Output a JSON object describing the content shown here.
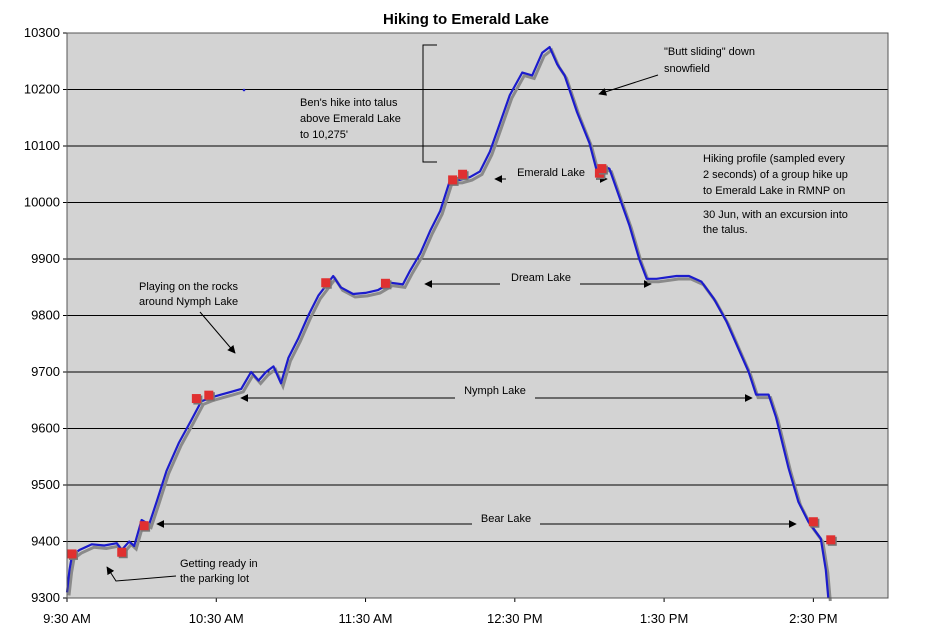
{
  "chart_data": {
    "type": "line",
    "title": "Hiking to Emerald Lake",
    "xlabel": "",
    "ylabel": "",
    "ylim": [
      9300,
      10300
    ],
    "xlim": [
      "9:30 AM",
      "3:00 PM"
    ],
    "yticks": [
      9300,
      9400,
      9500,
      9600,
      9700,
      9800,
      9900,
      10000,
      10100,
      10200,
      10300
    ],
    "xticks": [
      "9:30 AM",
      "10:30 AM",
      "11:30 AM",
      "12:30 PM",
      "1:30 PM",
      "2:30 PM"
    ],
    "grid": "horizontal",
    "colors": {
      "plot_bg": "#d3d3d3",
      "line": "#1c1ccc",
      "marker": "#e03030",
      "grid": "#000000"
    },
    "series": [
      {
        "points": [
          [
            "9:30 AM",
            9310
          ],
          [
            "9:31 AM",
            9350
          ],
          [
            "9:32 AM",
            9375
          ],
          [
            "9:35 AM",
            9385
          ],
          [
            "9:40 AM",
            9395
          ],
          [
            "9:45 AM",
            9393
          ],
          [
            "9:50 AM",
            9397
          ],
          [
            "9:52 AM",
            9385
          ],
          [
            "9:55 AM",
            9400
          ],
          [
            "9:57 AM",
            9392
          ],
          [
            "10:00 AM",
            9438
          ],
          [
            "10:03 AM",
            9430
          ],
          [
            "10:06 AM",
            9470
          ],
          [
            "10:10 AM",
            9525
          ],
          [
            "10:15 AM",
            9575
          ],
          [
            "10:20 AM",
            9615
          ],
          [
            "10:24 AM",
            9648
          ],
          [
            "10:28 AM",
            9655
          ],
          [
            "10:32 AM",
            9660
          ],
          [
            "10:36 AM",
            9665
          ],
          [
            "10:40 AM",
            9670
          ],
          [
            "10:44 AM",
            9700
          ],
          [
            "10:47 AM",
            9685
          ],
          [
            "10:50 AM",
            9700
          ],
          [
            "10:53 AM",
            9710
          ],
          [
            "10:56 AM",
            9680
          ],
          [
            "10:59 AM",
            9725
          ],
          [
            "11:03 AM",
            9760
          ],
          [
            "11:07 AM",
            9800
          ],
          [
            "11:11 AM",
            9835
          ],
          [
            "11:15 AM",
            9858
          ],
          [
            "11:17 AM",
            9870
          ],
          [
            "11:20 AM",
            9850
          ],
          [
            "11:25 AM",
            9838
          ],
          [
            "11:30 AM",
            9840
          ],
          [
            "11:35 AM",
            9845
          ],
          [
            "11:40 AM",
            9858
          ],
          [
            "11:45 AM",
            9855
          ],
          [
            "11:48 AM",
            9880
          ],
          [
            "11:52 AM",
            9910
          ],
          [
            "11:56 AM",
            9950
          ],
          [
            "12:00 PM",
            9985
          ],
          [
            "12:04 PM",
            10040
          ],
          [
            "12:08 PM",
            10040
          ],
          [
            "12:12 PM",
            10045
          ],
          [
            "12:16 PM",
            10055
          ],
          [
            "12:20 PM",
            10090
          ],
          [
            "12:24 PM",
            10140
          ],
          [
            "12:28 PM",
            10190
          ],
          [
            "12:33 PM",
            10230
          ],
          [
            "12:37 PM",
            10225
          ],
          [
            "12:41 PM",
            10265
          ],
          [
            "12:44 PM",
            10275
          ],
          [
            "12:47 PM",
            10245
          ],
          [
            "12:50 PM",
            10225
          ],
          [
            "12:55 PM",
            10160
          ],
          [
            "1:00 PM",
            10105
          ],
          [
            "1:03 PM",
            10055
          ],
          [
            "1:05 PM",
            10065
          ],
          [
            "1:08 PM",
            10060
          ],
          [
            "1:12 PM",
            10010
          ],
          [
            "1:16 PM",
            9960
          ],
          [
            "1:20 PM",
            9900
          ],
          [
            "1:23 PM",
            9865
          ],
          [
            "1:27 PM",
            9865
          ],
          [
            "1:35 PM",
            9870
          ],
          [
            "1:40 PM",
            9870
          ],
          [
            "1:45 PM",
            9860
          ],
          [
            "1:50 PM",
            9830
          ],
          [
            "1:55 PM",
            9790
          ],
          [
            "2:00 PM",
            9740
          ],
          [
            "2:04 PM",
            9700
          ],
          [
            "2:07 PM",
            9660
          ],
          [
            "2:12 PM",
            9660
          ],
          [
            "2:15 PM",
            9620
          ],
          [
            "2:20 PM",
            9530
          ],
          [
            "2:24 PM",
            9470
          ],
          [
            "2:28 PM",
            9435
          ],
          [
            "2:33 PM",
            9405
          ],
          [
            "2:35 PM",
            9350
          ],
          [
            "2:36 PM",
            9300
          ]
        ]
      }
    ],
    "markers": [
      [
        "9:32 AM",
        9378
      ],
      [
        "9:52 AM",
        9381
      ],
      [
        "10:01 AM",
        9428
      ],
      [
        "10:22 AM",
        9653
      ],
      [
        "10:27 AM",
        9659
      ],
      [
        "11:14 AM",
        9858
      ],
      [
        "11:38 AM",
        9857
      ],
      [
        "12:05 PM",
        10040
      ],
      [
        "12:09 PM",
        10050
      ],
      [
        "1:04 PM",
        10052
      ],
      [
        "1:05 PM",
        10060
      ],
      [
        "2:30 PM",
        9435
      ],
      [
        "2:37 PM",
        9403
      ]
    ],
    "annotations": {
      "emerald_lake": "Emerald Lake",
      "dream_lake": "Dream Lake",
      "nymph_lake": "Nymph Lake",
      "bear_lake": "Bear Lake",
      "butt_sliding_1": "\"Butt sliding\" down",
      "butt_sliding_2": "snowfield",
      "bens_hike_1": "Ben's hike into talus",
      "bens_hike_2": "above Emerald Lake",
      "bens_hike_3": "to 10,275'",
      "profile_1": "Hiking profile (sampled every",
      "profile_2": "2 seconds) of a group hike up",
      "profile_3": "to Emerald Lake in RMNP on",
      "profile_4": "30 Jun, with an excursion into",
      "profile_5": "the talus.",
      "rocks_1": "Playing on the rocks",
      "rocks_2": "around Nymph Lake",
      "ready_1": "Getting ready in",
      "ready_2": "the parking lot"
    }
  }
}
